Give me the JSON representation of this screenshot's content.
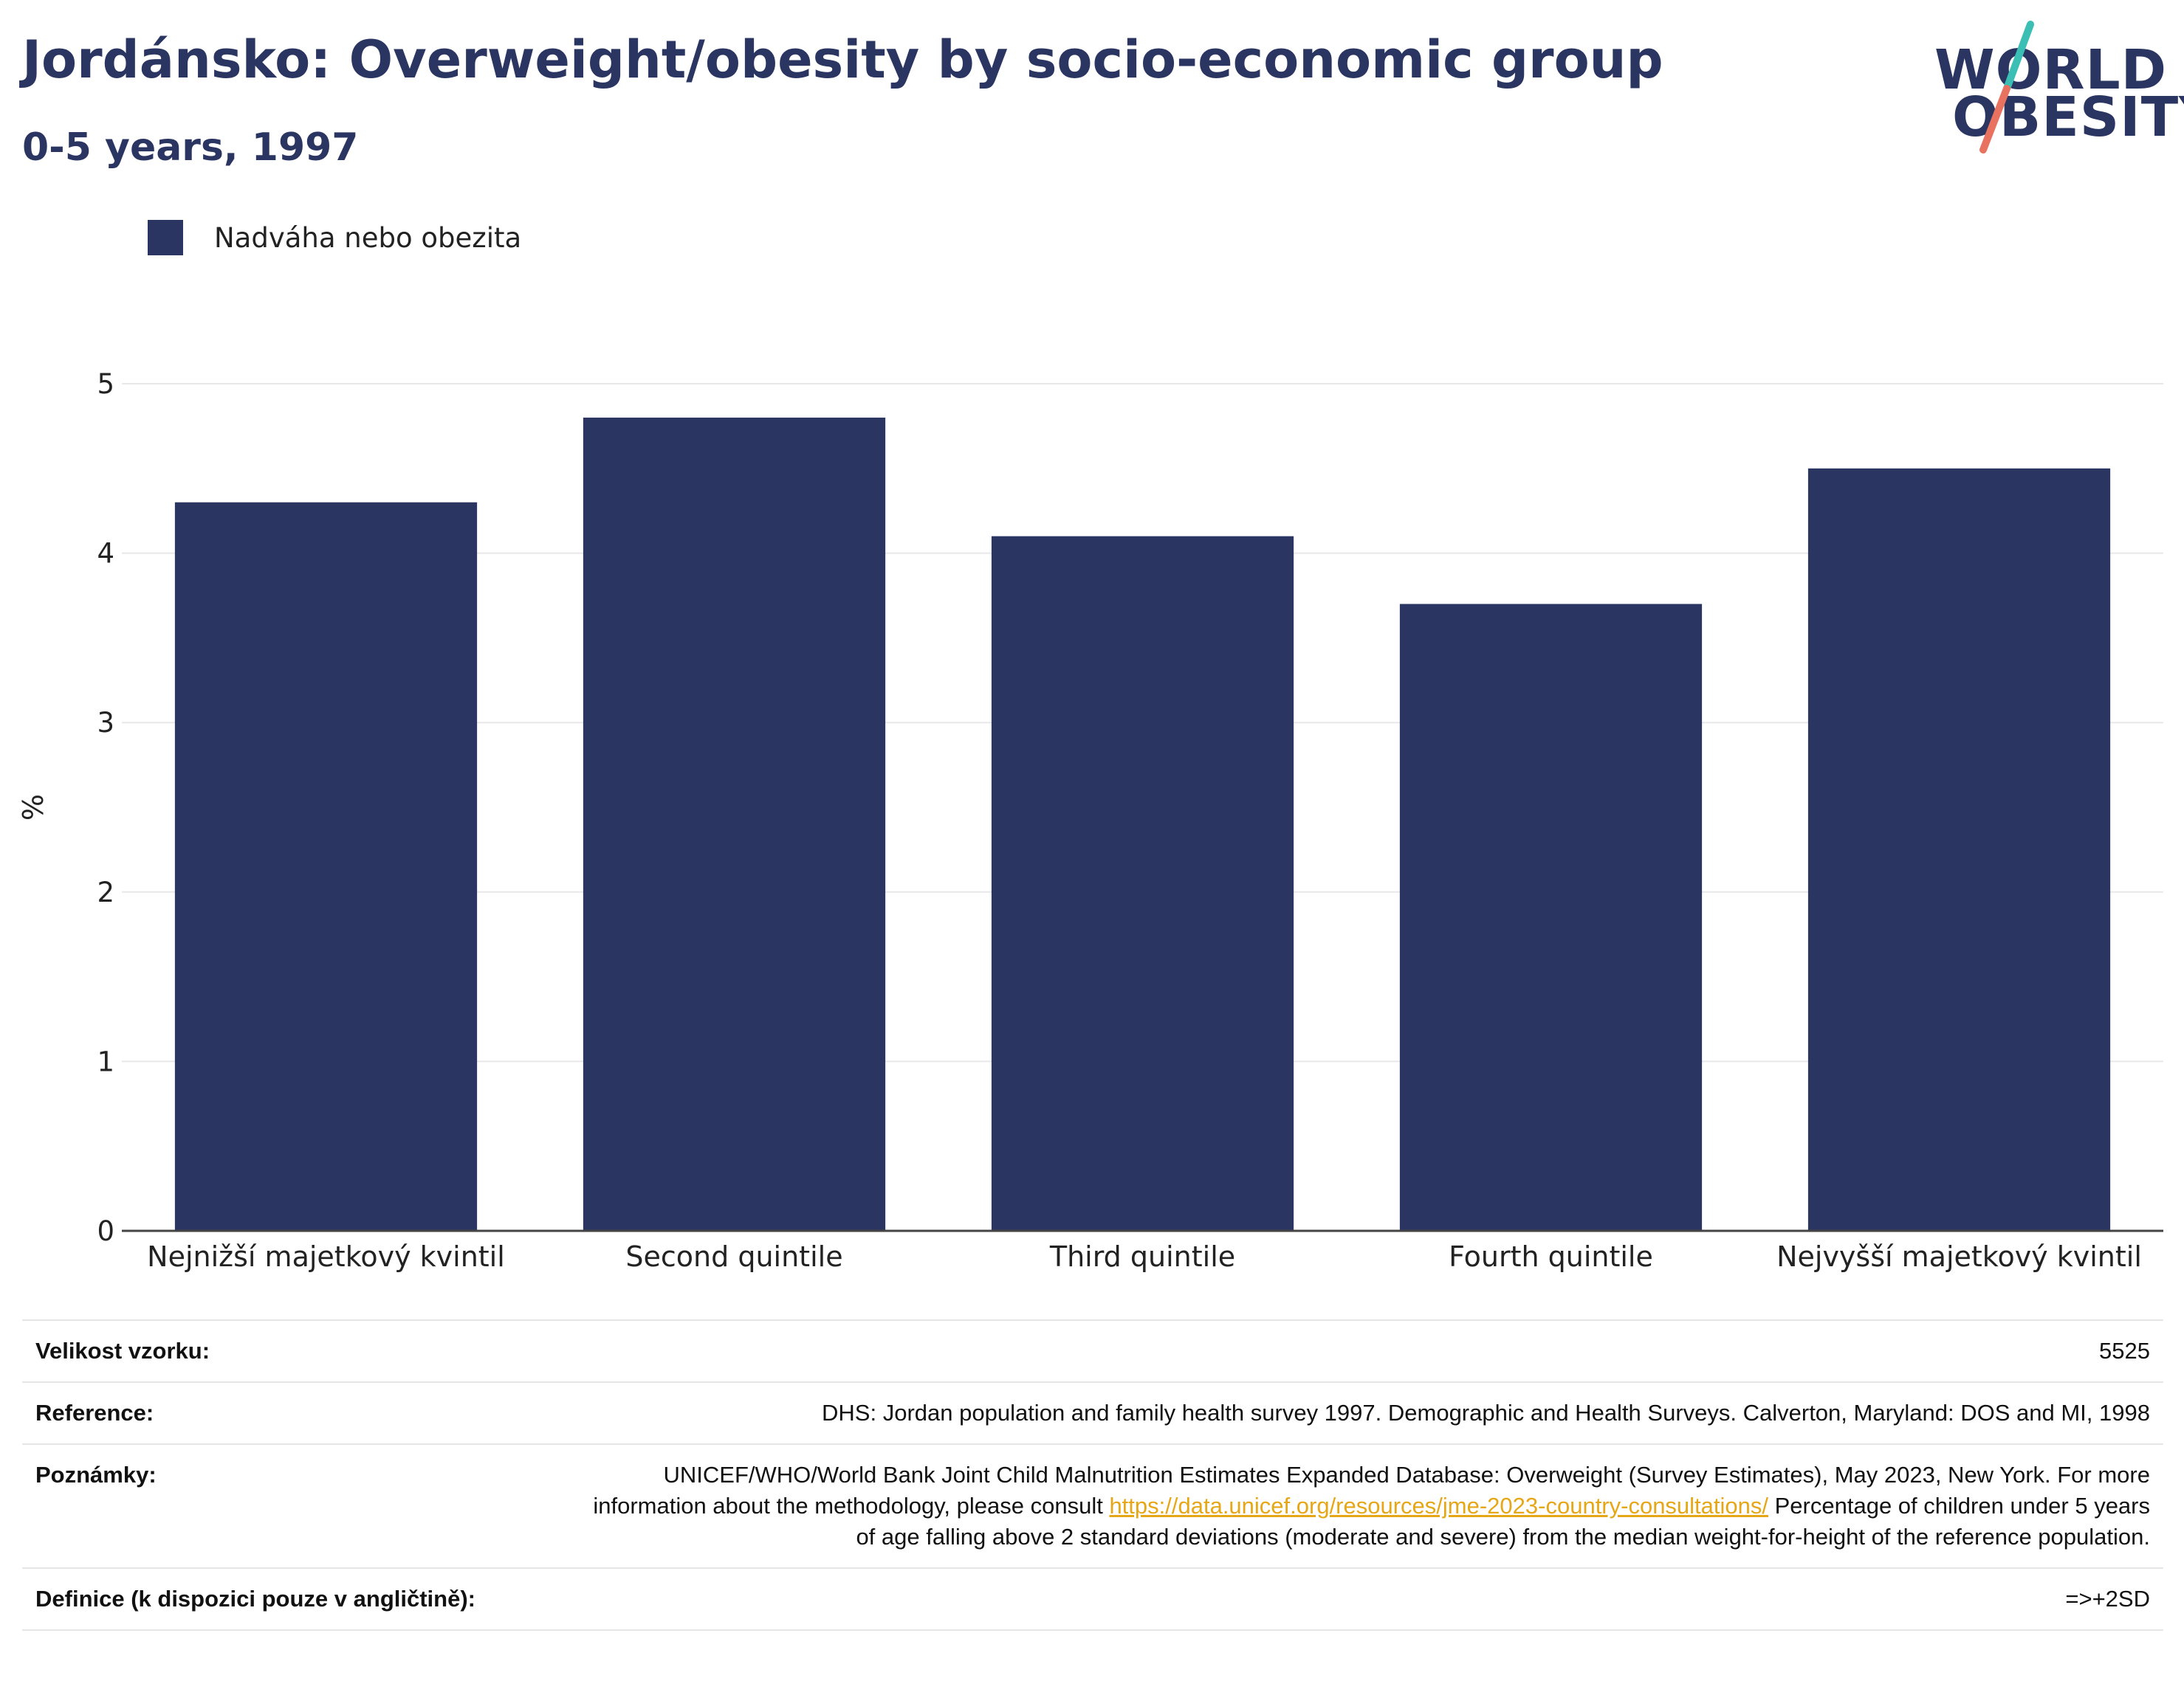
{
  "title": "Jordánsko: Overweight/obesity by socio-economic group",
  "subtitle": "0-5 years, 1997",
  "logo": {
    "line1": "WORLD",
    "line2": "OBESITY"
  },
  "colors": {
    "bar": "#2a3561",
    "title": "#2a3561",
    "link": "#e6a717",
    "logo_teal": "#3bbfb5",
    "logo_coral": "#e8715f"
  },
  "chart_data": {
    "type": "bar",
    "categories": [
      "Nejnižší majetkový kvintil",
      "Second quintile",
      "Third quintile",
      "Fourth quintile",
      "Nejvyšší majetkový kvintil"
    ],
    "series": [
      {
        "name": "Nadváha nebo obezita",
        "values": [
          4.3,
          4.8,
          4.1,
          3.7,
          4.5
        ]
      }
    ],
    "ylabel": "%",
    "ylim": [
      0,
      5
    ],
    "yticks": [
      0,
      1,
      2,
      3,
      4,
      5
    ],
    "grid": true,
    "legend_position": "top-left"
  },
  "info": [
    {
      "label": "Velikost vzorku:",
      "value": "5525"
    },
    {
      "label": "Reference:",
      "value": "DHS: Jordan population and family health survey 1997. Demographic and Health Surveys. Calverton, Maryland: DOS and MI, 1998"
    },
    {
      "label": "Poznámky:",
      "value_before": "UNICEF/WHO/World Bank Joint Child Malnutrition Estimates Expanded Database: Overweight (Survey Estimates), May 2023, New York. For more information about the methodology, please consult ",
      "link": "https://data.unicef.org/resources/jme-2023-country-consultations/",
      "value_after": " Percentage of children under 5 years of age falling above 2 standard deviations (moderate and severe) from the median weight-for-height of the reference population."
    },
    {
      "label": "Definice (k dispozici pouze v angličtině):",
      "value": "=>+2SD"
    }
  ]
}
